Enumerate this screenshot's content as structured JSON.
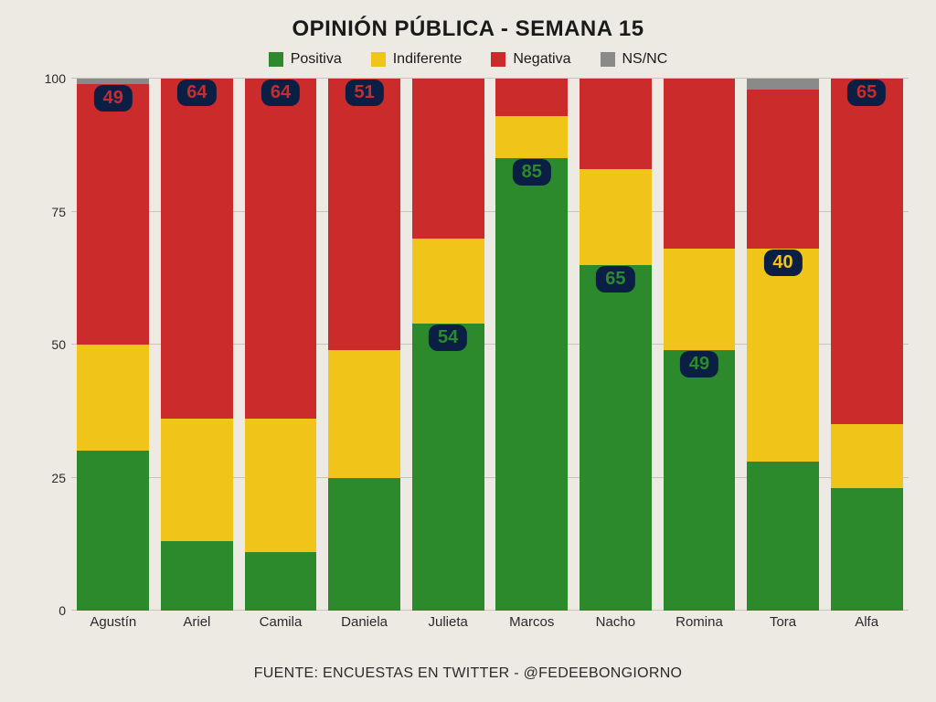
{
  "title": "OPINIÓN PÚBLICA - SEMANA 15",
  "source": "FUENTE: ENCUESTAS EN TWITTER - @FEDEEBONGIORNO",
  "legend": [
    {
      "label": "Positiva",
      "color": "#2c8a2c"
    },
    {
      "label": "Indiferente",
      "color": "#f0c419"
    },
    {
      "label": "Negativa",
      "color": "#cc2b2b"
    },
    {
      "label": "NS/NC",
      "color": "#8a8a8a"
    }
  ],
  "chart": {
    "type": "stacked-bar",
    "ylim": [
      0,
      100
    ],
    "yticks": [
      0,
      25,
      50,
      75,
      100
    ],
    "grid_color": "#c8c4bb",
    "background_color": "#edeae4",
    "bar_width_pct": 86,
    "categories": [
      "Agustín",
      "Ariel",
      "Camila",
      "Daniela",
      "Julieta",
      "Marcos",
      "Nacho",
      "Romina",
      "Tora",
      "Alfa"
    ],
    "series_order": [
      "positiva",
      "indiferente",
      "negativa",
      "nsnc"
    ],
    "colors": {
      "positiva": "#2c8a2c",
      "indiferente": "#f0c419",
      "negativa": "#cc2b2b",
      "nsnc": "#8a8a8a"
    },
    "badge": {
      "bg": "#0b1f44",
      "fg": "#ffffff",
      "fontsize": 20,
      "radius": 10
    },
    "data": [
      {
        "name": "Agustín",
        "positiva": 30,
        "indiferente": 20,
        "negativa": 49,
        "nsnc": 1,
        "label_value": 49,
        "label_seg": "negativa",
        "label_color": "#cc2b2b"
      },
      {
        "name": "Ariel",
        "positiva": 13,
        "indiferente": 23,
        "negativa": 64,
        "nsnc": 0,
        "label_value": 64,
        "label_seg": "negativa",
        "label_color": "#cc2b2b"
      },
      {
        "name": "Camila",
        "positiva": 11,
        "indiferente": 25,
        "negativa": 64,
        "nsnc": 0,
        "label_value": 64,
        "label_seg": "negativa",
        "label_color": "#cc2b2b"
      },
      {
        "name": "Daniela",
        "positiva": 25,
        "indiferente": 24,
        "negativa": 51,
        "nsnc": 0,
        "label_value": 51,
        "label_seg": "negativa",
        "label_color": "#cc2b2b"
      },
      {
        "name": "Julieta",
        "positiva": 54,
        "indiferente": 16,
        "negativa": 30,
        "nsnc": 0,
        "label_value": 54,
        "label_seg": "positiva",
        "label_color": "#2c8a2c"
      },
      {
        "name": "Marcos",
        "positiva": 85,
        "indiferente": 8,
        "negativa": 7,
        "nsnc": 0,
        "label_value": 85,
        "label_seg": "positiva",
        "label_color": "#2c8a2c"
      },
      {
        "name": "Nacho",
        "positiva": 65,
        "indiferente": 18,
        "negativa": 17,
        "nsnc": 0,
        "label_value": 65,
        "label_seg": "positiva",
        "label_color": "#2c8a2c"
      },
      {
        "name": "Romina",
        "positiva": 49,
        "indiferente": 19,
        "negativa": 32,
        "nsnc": 0,
        "label_value": 49,
        "label_seg": "positiva",
        "label_color": "#2c8a2c"
      },
      {
        "name": "Tora",
        "positiva": 28,
        "indiferente": 40,
        "negativa": 30,
        "nsnc": 2,
        "label_value": 40,
        "label_seg": "indiferente",
        "label_color": "#f0c419"
      },
      {
        "name": "Alfa",
        "positiva": 23,
        "indiferente": 12,
        "negativa": 65,
        "nsnc": 0,
        "label_value": 65,
        "label_seg": "negativa",
        "label_color": "#cc2b2b"
      }
    ]
  }
}
